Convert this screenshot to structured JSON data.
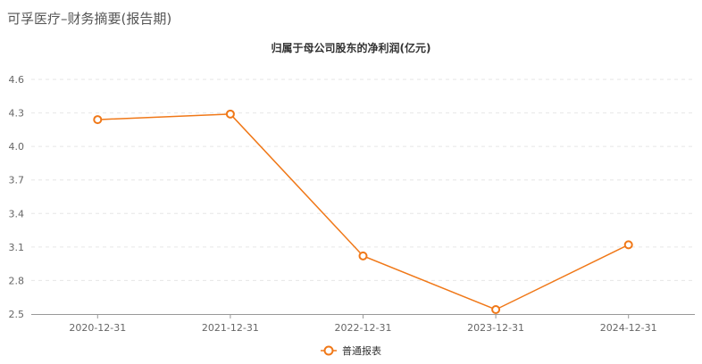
{
  "page": {
    "title": "可孚医疗–财务摘要(报告期)"
  },
  "chart_data": {
    "type": "line",
    "title": "归属于母公司股东的净利润(亿元)",
    "categories": [
      "2020-12-31",
      "2021-12-31",
      "2022-12-31",
      "2023-12-31",
      "2024-12-31"
    ],
    "series": [
      {
        "name": "普通报表",
        "values": [
          4.24,
          4.29,
          3.02,
          2.54,
          3.12
        ],
        "color": "#f07818"
      }
    ],
    "ylim": [
      2.5,
      4.6
    ],
    "yticks": [
      "2.5",
      "2.8",
      "3.1",
      "3.4",
      "3.7",
      "4.0",
      "4.3",
      "4.6"
    ],
    "grid": true,
    "legend": "bottom-center"
  }
}
